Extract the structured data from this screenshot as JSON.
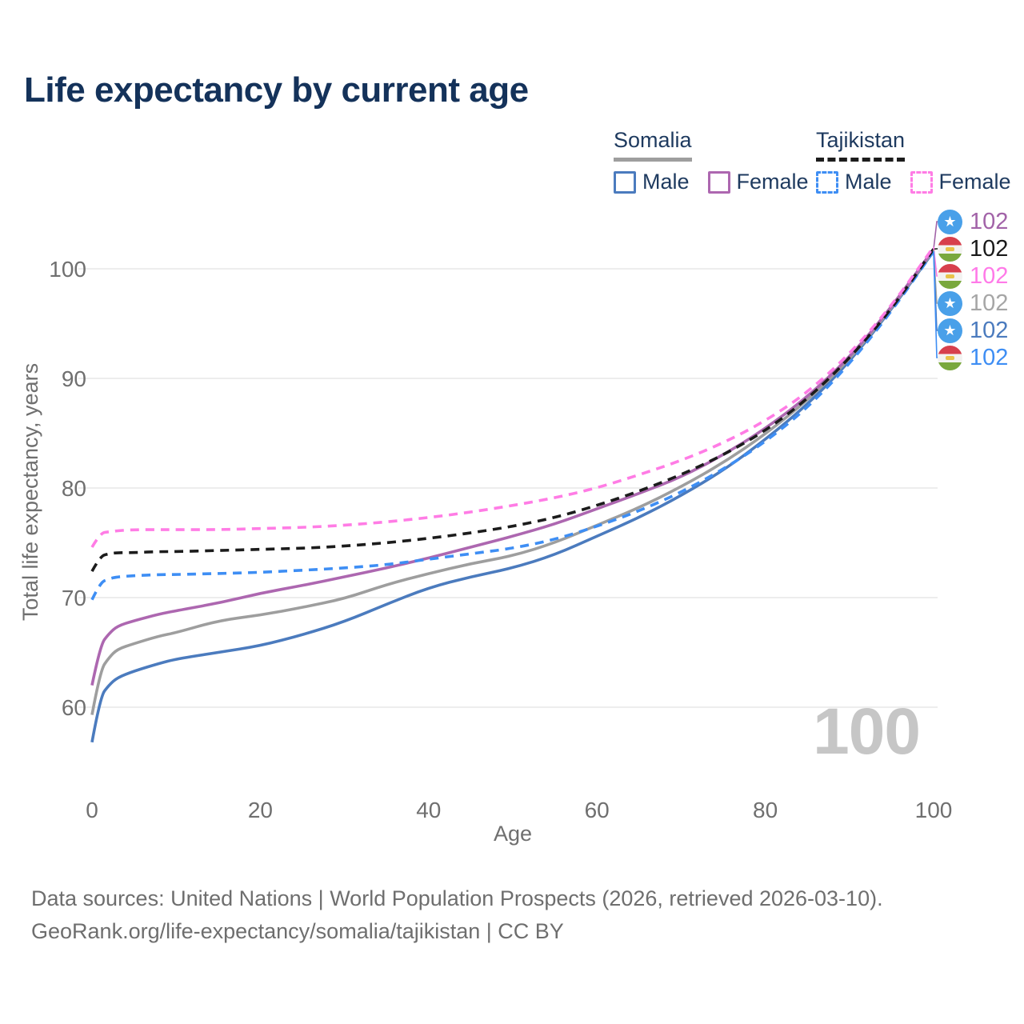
{
  "title": "Life expectancy by current age",
  "legend": {
    "somalia": {
      "header": "Somalia",
      "male_label": "Male",
      "female_label": "Female"
    },
    "tajikistan": {
      "header": "Tajikistan",
      "male_label": "Male",
      "female_label": "Female"
    }
  },
  "watermark": "100",
  "end_labels": [
    {
      "series": "Somalia Female",
      "flag": "somalia",
      "value": "102",
      "color": "#a263a8"
    },
    {
      "series": "Tajikistan Both sexes",
      "flag": "tajikistan",
      "value": "102",
      "color": "#1a1a1a"
    },
    {
      "series": "Tajikistan Female",
      "flag": "tajikistan",
      "value": "102",
      "color": "#ff7ae8"
    },
    {
      "series": "Somalia Both sexes",
      "flag": "somalia",
      "value": "102",
      "color": "#a6a6a6"
    },
    {
      "series": "Somalia Male",
      "flag": "somalia",
      "value": "102",
      "color": "#4b7bbe"
    },
    {
      "series": "Tajikistan Male",
      "flag": "tajikistan",
      "value": "102",
      "color": "#3e8ef4"
    }
  ],
  "footer": {
    "line1": "Data sources: United Nations | World Population Prospects (2026, retrieved 2026-03-10).",
    "line2": "GeoRank.org/life-expectancy/somalia/tajikistan | CC BY"
  },
  "colors": {
    "somalia_male": "#4b7bbe",
    "somalia_female": "#ad67b0",
    "somalia_both": "#9e9e9e",
    "tajikistan_male": "#3e8ef4",
    "tajikistan_female": "#ff7ce5",
    "tajikistan_both": "#1c1c1c",
    "title_text": "#14325a",
    "axis_text": "#6f6f6f",
    "grid": "#e7e7e7",
    "watermark": "#c6c6c6",
    "footer_text": "#6e6e6e",
    "flag_somalia_blue": "#49a0e9",
    "flag_tajik_red": "#d7404d",
    "flag_tajik_green": "#7aa83d"
  },
  "chart_data": {
    "type": "line",
    "title": "Life expectancy by current age",
    "xlabel": "Age",
    "ylabel": "Total life expectancy, years",
    "x_ticks": [
      0,
      20,
      40,
      60,
      80,
      100
    ],
    "y_ticks": [
      60,
      70,
      80,
      90,
      100
    ],
    "xlim": [
      0,
      100
    ],
    "ylim": [
      56,
      103
    ],
    "grid": "horizontal only",
    "legend_position": "top-right",
    "x": [
      0,
      1,
      2,
      3,
      5,
      8,
      10,
      15,
      20,
      25,
      30,
      35,
      40,
      45,
      50,
      55,
      60,
      65,
      70,
      75,
      80,
      85,
      90,
      95,
      100
    ],
    "series": [
      {
        "name": "Somalia Male",
        "country": "Somalia",
        "sex": "Male",
        "style": "solid",
        "color": "#4b7bbe",
        "values": [
          56.8,
          61.0,
          62.0,
          62.7,
          63.3,
          64.0,
          64.4,
          65.0,
          65.6,
          66.6,
          67.8,
          69.4,
          70.9,
          71.9,
          72.7,
          73.9,
          75.6,
          77.3,
          79.3,
          81.6,
          84.4,
          87.6,
          91.5,
          96.3,
          101.6
        ]
      },
      {
        "name": "Somalia Both sexes",
        "country": "Somalia",
        "sex": "Both",
        "style": "solid",
        "color": "#9e9e9e",
        "values": [
          59.3,
          63.4,
          64.5,
          65.3,
          65.8,
          66.5,
          66.8,
          67.9,
          68.4,
          69.1,
          69.9,
          71.2,
          72.2,
          73.1,
          73.8,
          75.0,
          76.6,
          78.2,
          80.1,
          82.3,
          84.9,
          88.0,
          91.7,
          96.4,
          101.7
        ]
      },
      {
        "name": "Somalia Female",
        "country": "Somalia",
        "sex": "Female",
        "style": "solid",
        "color": "#ad67b0",
        "values": [
          62.0,
          65.7,
          66.7,
          67.4,
          67.9,
          68.5,
          68.8,
          69.5,
          70.4,
          71.1,
          71.9,
          72.7,
          73.6,
          74.6,
          75.6,
          76.7,
          78.1,
          79.5,
          81.0,
          83.0,
          85.4,
          88.3,
          91.9,
          96.5,
          101.8
        ]
      },
      {
        "name": "Tajikistan Male",
        "country": "Tajikistan",
        "sex": "Male",
        "style": "dashed",
        "color": "#3e8ef4",
        "values": [
          69.8,
          71.4,
          71.7,
          71.9,
          72.0,
          72.1,
          72.1,
          72.2,
          72.3,
          72.5,
          72.7,
          73.0,
          73.5,
          74.0,
          74.5,
          75.3,
          76.5,
          77.9,
          79.6,
          81.7,
          84.2,
          87.3,
          91.3,
          96.1,
          101.6
        ]
      },
      {
        "name": "Tajikistan Both sexes",
        "country": "Tajikistan",
        "sex": "Both",
        "style": "dashed",
        "color": "#1c1c1c",
        "values": [
          72.4,
          73.8,
          74.0,
          74.1,
          74.1,
          74.2,
          74.2,
          74.3,
          74.4,
          74.5,
          74.7,
          75.0,
          75.4,
          75.9,
          76.5,
          77.3,
          78.4,
          79.7,
          81.2,
          83.0,
          85.2,
          88.1,
          91.8,
          96.3,
          101.8
        ]
      },
      {
        "name": "Tajikistan Female",
        "country": "Tajikistan",
        "sex": "Female",
        "style": "dashed",
        "color": "#ff7ce5",
        "values": [
          74.6,
          75.9,
          76.0,
          76.1,
          76.2,
          76.2,
          76.2,
          76.2,
          76.3,
          76.4,
          76.6,
          76.9,
          77.3,
          77.8,
          78.4,
          79.1,
          80.0,
          81.2,
          82.5,
          84.1,
          86.1,
          88.7,
          92.2,
          96.6,
          102.0
        ]
      }
    ]
  }
}
